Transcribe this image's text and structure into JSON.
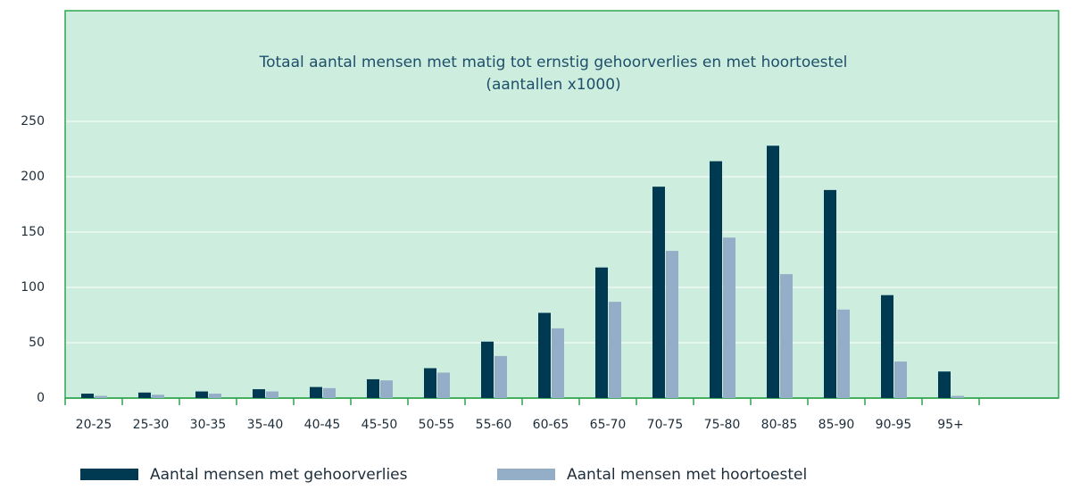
{
  "chart_data": {
    "type": "bar",
    "title": "Totaal aantal mensen met matig tot ernstig gehoorverlies en met hoortoestel",
    "subtitle": "(aantallen x1000)",
    "categories": [
      "20-25",
      "25-30",
      "30-35",
      "35-40",
      "40-45",
      "45-50",
      "50-55",
      "55-60",
      "60-65",
      "65-70",
      "70-75",
      "75-80",
      "80-85",
      "85-90",
      "90-95",
      "95+"
    ],
    "series": [
      {
        "name": "Aantal mensen met gehoorverlies",
        "color": "#003a52",
        "values": [
          4,
          5,
          6,
          8,
          10,
          17,
          27,
          51,
          77,
          118,
          191,
          214,
          228,
          188,
          93,
          24
        ]
      },
      {
        "name": "Aantal mensen met hoortoestel",
        "color": "#95aec8",
        "values": [
          2,
          3,
          4,
          6,
          9,
          16,
          23,
          38,
          63,
          87,
          133,
          145,
          112,
          80,
          33,
          2
        ]
      }
    ],
    "ylim": [
      0,
      350
    ],
    "yticks": [
      0,
      50,
      100,
      150,
      200,
      250
    ],
    "grid": true,
    "legend": "bottom"
  }
}
